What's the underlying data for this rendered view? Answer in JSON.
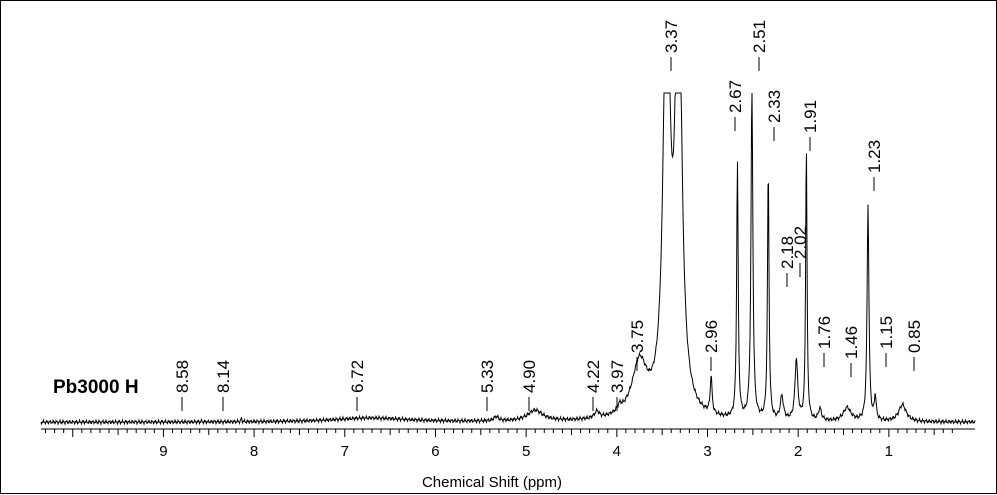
{
  "chart_data": {
    "type": "line",
    "sample_label": "Pb3000 H",
    "xlabel": "Chemical Shift (ppm)",
    "xlim": [
      10.35,
      0.05
    ],
    "x_reversed": true,
    "ylim": [
      0,
      100
    ],
    "grid": false,
    "x_ticks": [
      "9",
      "8",
      "7",
      "6",
      "5",
      "4",
      "3",
      "2",
      "1"
    ],
    "x_tick_values": [
      9,
      8,
      7,
      6,
      5,
      4,
      3,
      2,
      1
    ],
    "peak_labels": [
      "8.58",
      "8.14",
      "6.72",
      "5.33",
      "4.90",
      "4.22",
      "3.97",
      "3.75",
      "3.37",
      "2.96",
      "2.67",
      "2.51",
      "2.33",
      "2.18",
      "2.02",
      "1.91",
      "1.76",
      "1.46",
      "1.23",
      "1.15",
      "0.85"
    ],
    "peaks": [
      {
        "ppm": 8.58,
        "h": 0.3,
        "w": 0.006
      },
      {
        "ppm": 8.14,
        "h": 1.0,
        "w": 0.006
      },
      {
        "ppm": 6.72,
        "h": 1.2,
        "w": 0.5
      },
      {
        "ppm": 5.33,
        "h": 1.3,
        "w": 0.03
      },
      {
        "ppm": 4.9,
        "h": 3.2,
        "w": 0.1
      },
      {
        "ppm": 4.22,
        "h": 2.0,
        "w": 0.03
      },
      {
        "ppm": 3.97,
        "h": 1.8,
        "w": 0.03
      },
      {
        "ppm": 3.75,
        "h": 16.0,
        "w": 0.1
      },
      {
        "ppm": 3.45,
        "h": 140.0,
        "w": 0.04
      },
      {
        "ppm": 3.32,
        "h": 140.0,
        "w": 0.04
      },
      {
        "ppm": 2.96,
        "h": 11.0,
        "w": 0.012
      },
      {
        "ppm": 2.67,
        "h": 76.0,
        "w": 0.01
      },
      {
        "ppm": 2.51,
        "h": 100.0,
        "w": 0.012
      },
      {
        "ppm": 2.33,
        "h": 74.0,
        "w": 0.01
      },
      {
        "ppm": 2.18,
        "h": 7.0,
        "w": 0.02
      },
      {
        "ppm": 2.02,
        "h": 18.0,
        "w": 0.018
      },
      {
        "ppm": 1.91,
        "h": 82.0,
        "w": 0.009
      },
      {
        "ppm": 1.76,
        "h": 3.5,
        "w": 0.02
      },
      {
        "ppm": 1.46,
        "h": 4.0,
        "w": 0.05
      },
      {
        "ppm": 1.23,
        "h": 64.0,
        "w": 0.012
      },
      {
        "ppm": 1.15,
        "h": 7.0,
        "w": 0.012
      },
      {
        "ppm": 0.85,
        "h": 5.0,
        "w": 0.05
      }
    ],
    "baseline": 2.0
  }
}
